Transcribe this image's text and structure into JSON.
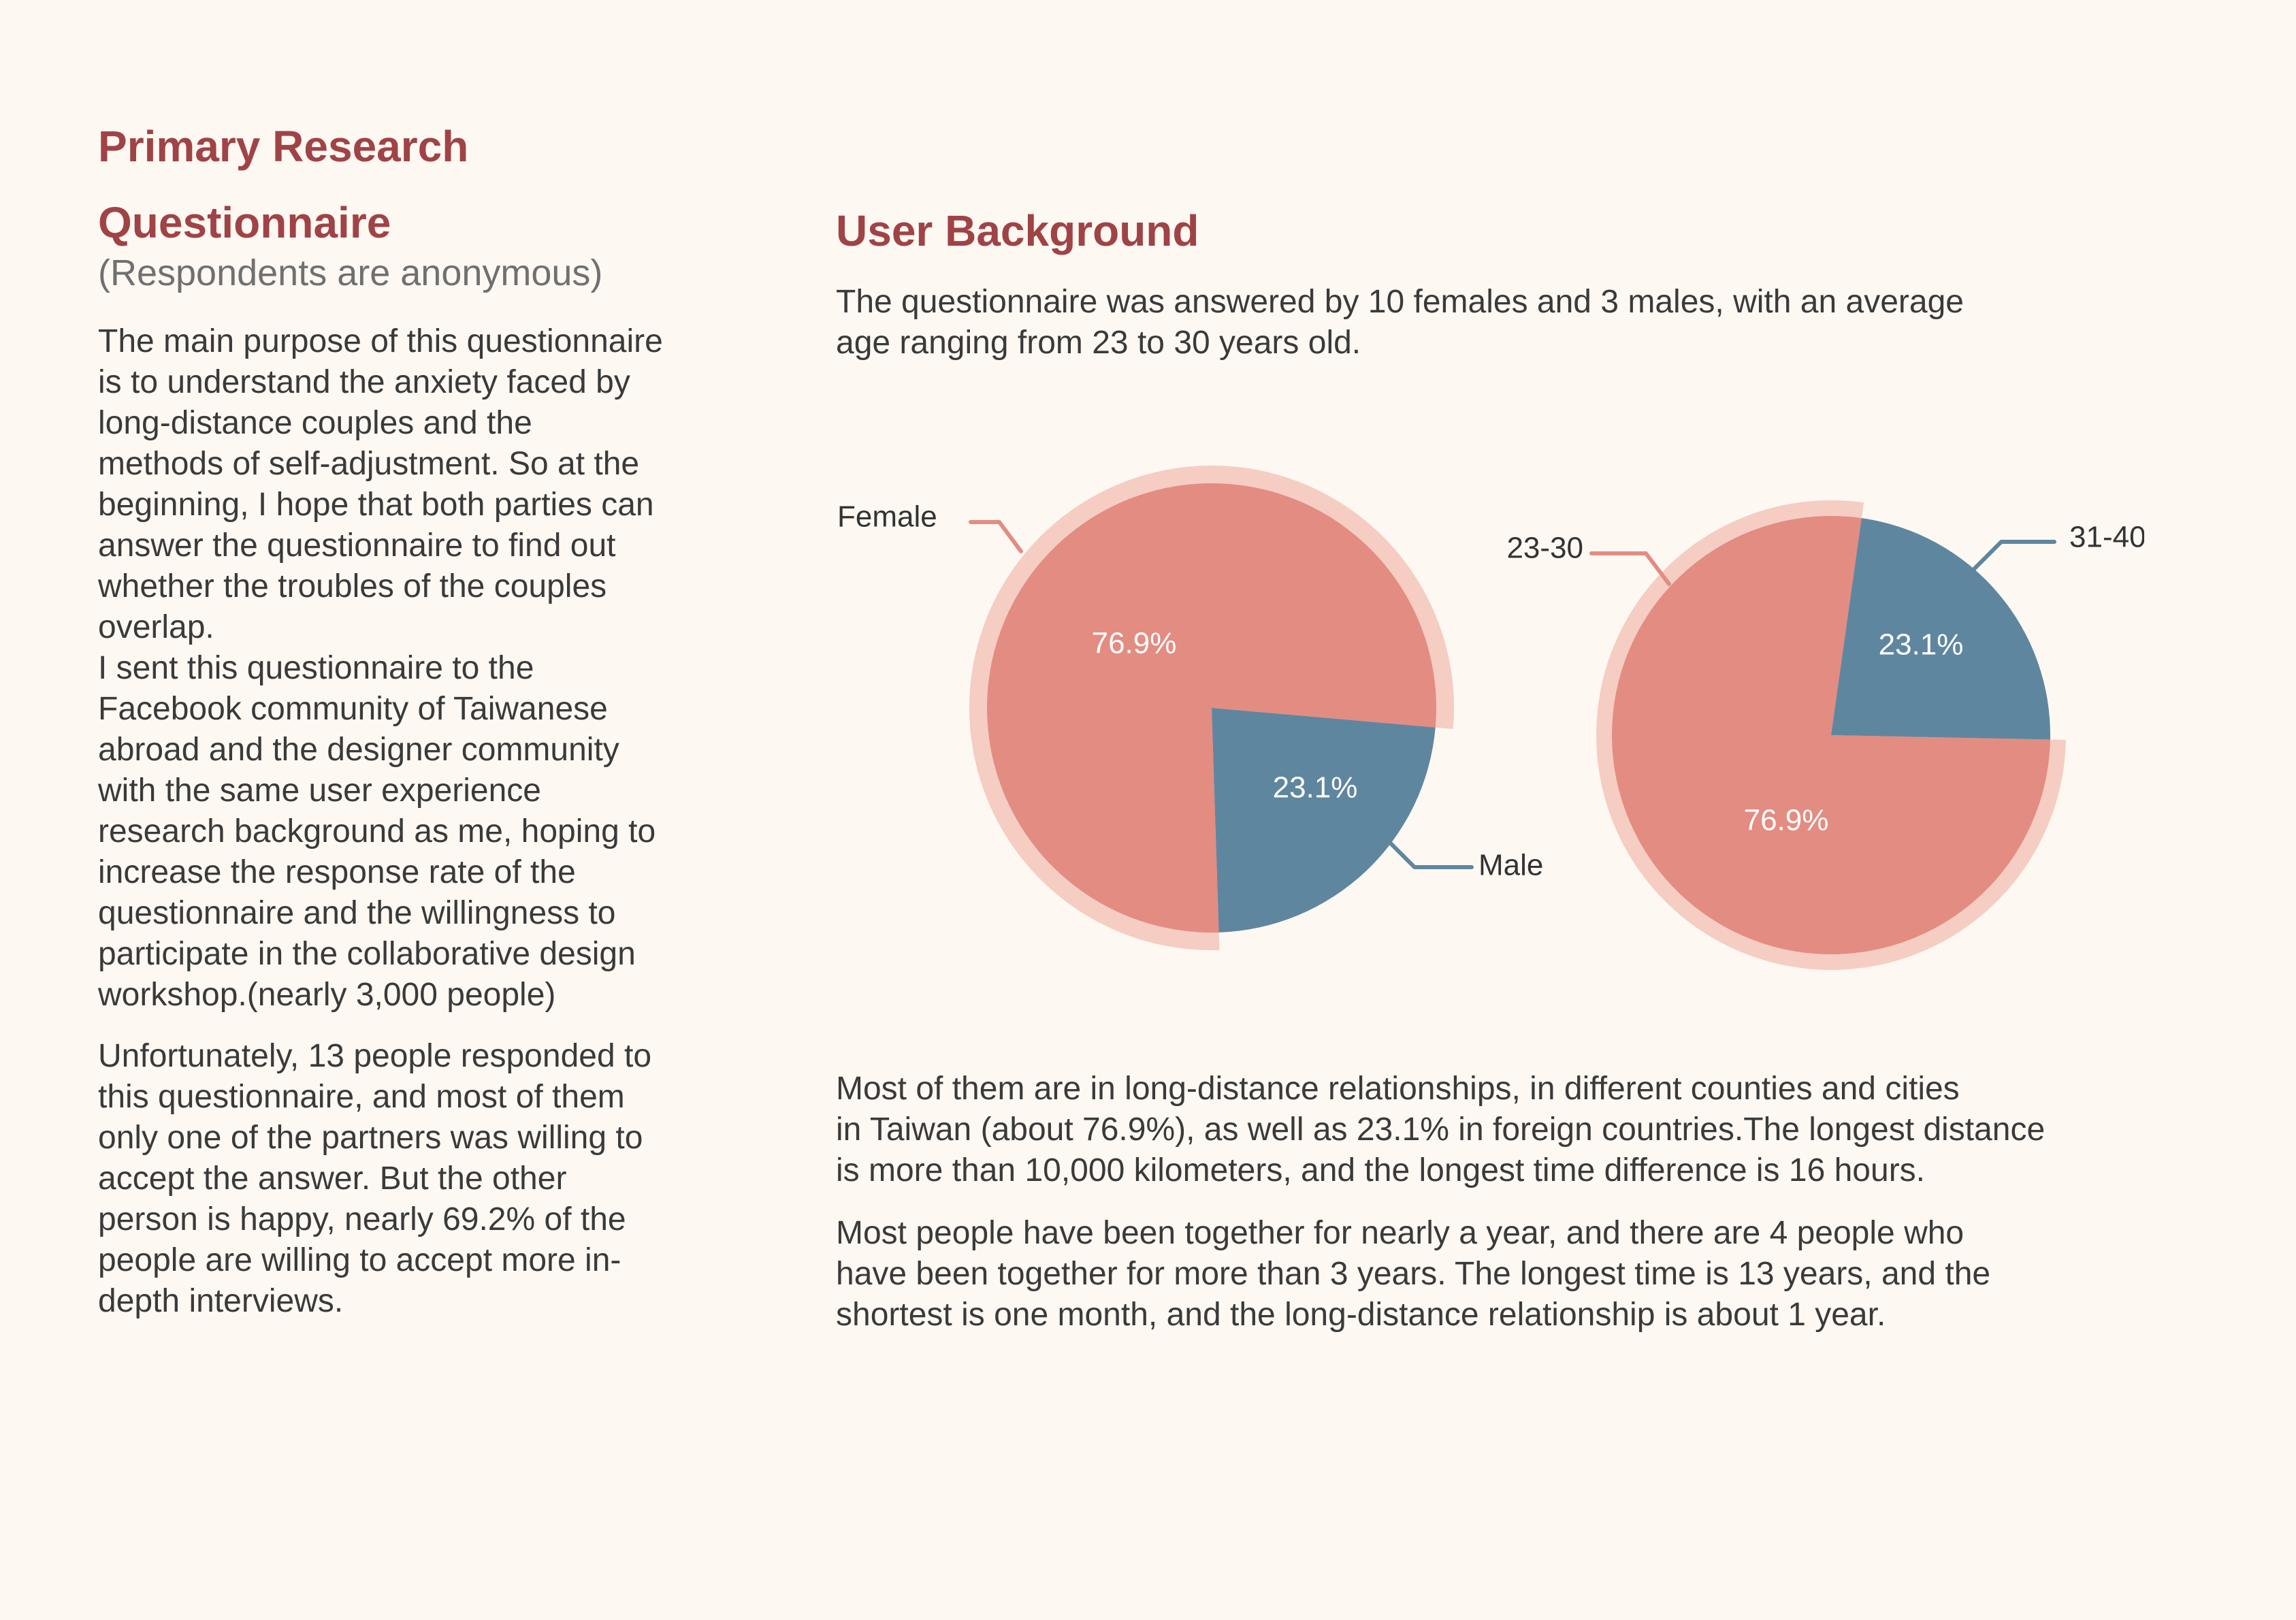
{
  "left": {
    "heading": "Primary Research",
    "subheading": "Questionnaire",
    "note": "(Respondents are anonymous)",
    "para1": "The main purpose of this questionnaire\nis to understand the anxiety faced by\nlong-distance couples and the\nmethods of self-adjustment. So at the\nbeginning, I hope that both parties can\nanswer the questionnaire to find out\nwhether the troubles of the couples\noverlap.\nI sent this questionnaire to the\nFacebook community of Taiwanese\nabroad and the designer community\nwith the same user experience\nresearch background as me, hoping to\nincrease the response rate of the\nquestionnaire and the willingness to\nparticipate in the collaborative design\nworkshop.(nearly 3,000 people)",
    "para2": "Unfortunately, 13 people responded to\nthis questionnaire, and most of them\nonly one of the partners was willing to\naccept the answer. But the other\nperson is happy, nearly 69.2% of the\npeople are willing to accept more in-\ndepth interviews."
  },
  "right": {
    "heading": "User Background",
    "intro": "The questionnaire was answered by 10 females and 3 males, with an average\nage ranging from 23 to 30 years old.",
    "para3": "Most of them are in long-distance relationships, in different counties and cities\nin Taiwan (about 76.9%), as well as 23.1% in foreign countries.The longest distance\nis more than 10,000 kilometers, and the longest time difference is 16 hours.",
    "para4": "Most people have been together for nearly a year, and there are 4 people who\nhave been together for more than 3 years. The longest time is 13 years, and the\nshortest is one month, and the long-distance relationship is about 1 year."
  },
  "colors": {
    "heading": "#a04346",
    "pink": "#e38c82",
    "pink_halo": "#f5cdc2",
    "blue": "#5f869f"
  },
  "chart_data": [
    {
      "type": "pie",
      "labels": [
        "Female",
        "Male"
      ],
      "values": [
        76.9,
        23.1
      ],
      "value_labels": [
        "76.9%",
        "23.1%"
      ]
    },
    {
      "type": "pie",
      "labels": [
        "23-30",
        "31-40"
      ],
      "values": [
        76.9,
        23.1
      ],
      "value_labels": [
        "76.9%",
        "23.1%"
      ]
    }
  ]
}
